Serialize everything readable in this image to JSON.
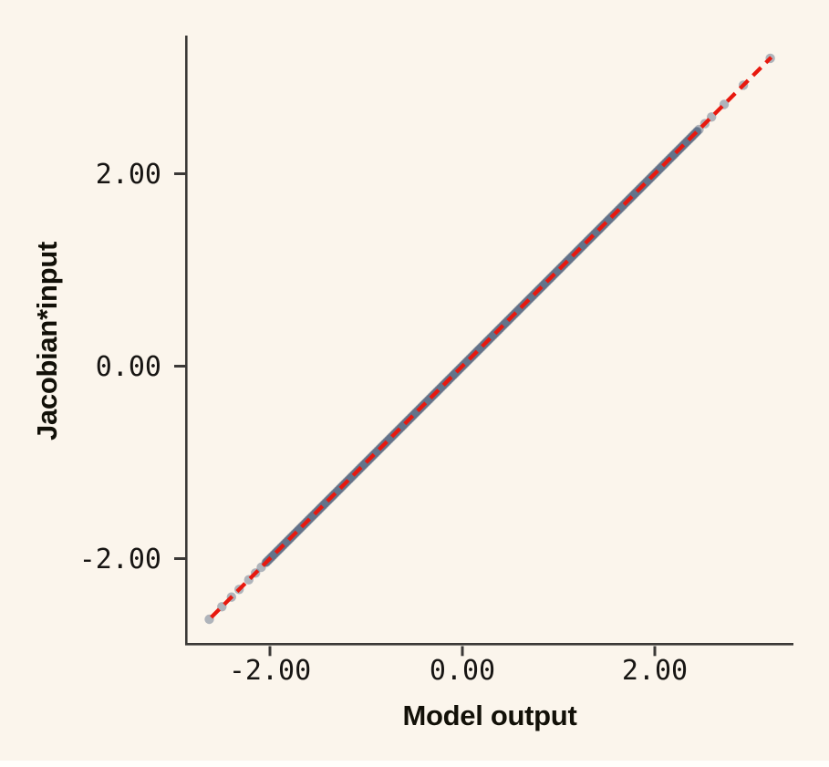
{
  "style": {
    "background": "#FBF5EC",
    "bottom_strip": "#FFFEFB",
    "axis_color": "#3B3937",
    "tick_label_color": "#171513",
    "axis_label_color": "#121008"
  },
  "chart_data": {
    "type": "scatter",
    "title": "",
    "xlabel": "Model output",
    "ylabel": "Jacobian*input",
    "xlim": [
      -2.88,
      3.44
    ],
    "ylim": [
      -2.9,
      3.44
    ],
    "grid": false,
    "legend": false,
    "relationship": "all points lie on the identity line y = x",
    "x_ticks": [
      {
        "value": -2,
        "label": "-2.00"
      },
      {
        "value": 0,
        "label": "0.00"
      },
      {
        "value": 2,
        "label": "2.00"
      }
    ],
    "y_ticks": [
      {
        "value": 2,
        "label": "2.00"
      },
      {
        "value": 0,
        "label": "0.00"
      },
      {
        "value": -2,
        "label": "-2.00"
      }
    ],
    "identity_line": {
      "style": "dashed",
      "color": "#E8190F",
      "width": 4.3,
      "dash": [
        12.5,
        7.5
      ],
      "t_start": -2.61,
      "t_end": 3.21
    },
    "scatter": {
      "marker_color": "#64738A",
      "marker_opacity": 0.5,
      "marker_radius": 5.2,
      "band_range": {
        "from": -2.04,
        "to": 2.44,
        "step": 0.02
      },
      "sparse_t": [
        -2.63,
        -2.5,
        -2.4,
        -2.32,
        -2.22,
        -2.15,
        -2.09,
        2.46,
        2.52,
        2.59,
        2.72,
        2.92,
        3.2
      ]
    }
  }
}
